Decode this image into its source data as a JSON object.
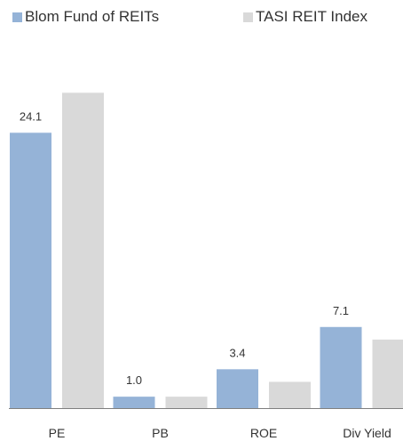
{
  "chart_data": {
    "type": "bar",
    "categories": [
      "PE",
      "PB",
      "ROE",
      "Div Yield"
    ],
    "series": [
      {
        "name": "Blom Fund of REITs",
        "values": [
          24.1,
          1.0,
          3.4,
          7.1
        ],
        "labels": [
          "24.1",
          "1.0",
          "3.4",
          "7.1"
        ],
        "color": "#95B3D7"
      },
      {
        "name": "TASI REIT Index",
        "values": [
          27.6,
          1.0,
          2.3,
          6.0
        ],
        "labels": [
          "",
          "",
          "",
          ""
        ],
        "color": "#D9D9D9"
      }
    ],
    "ylim": [
      0,
      30
    ],
    "grid": false,
    "legend_position": "top",
    "title": "",
    "xlabel": "",
    "ylabel": ""
  }
}
